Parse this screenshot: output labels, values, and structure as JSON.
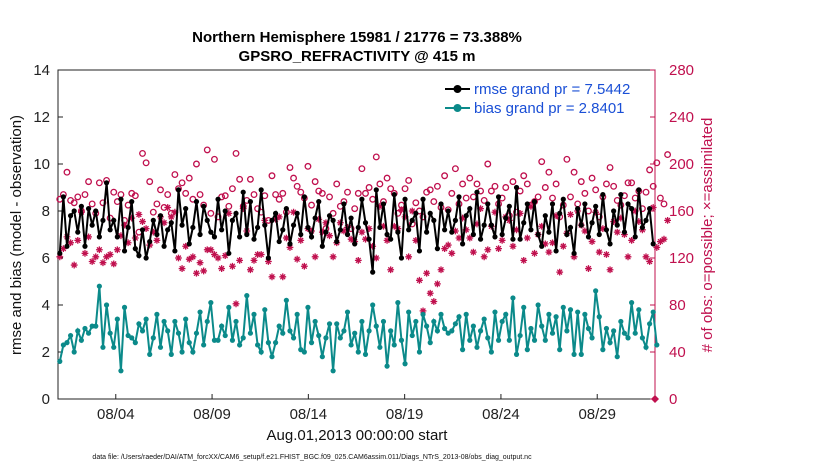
{
  "chart_data": {
    "type": "line",
    "title_line1": "Northern Hemisphere 15981 / 21776 = 73.388%",
    "title_line2": "GPSRO_REFRACTIVITY @ 415 m",
    "xlabel": "Aug.01,2013 00:00:00 start",
    "ylabel_left": "rmse and bias (model - observation)",
    "ylabel_right": "# of obs: o=possible; ×=assimilated",
    "ylim_left": [
      0,
      14
    ],
    "ylim_right": [
      0,
      280
    ],
    "xlim_days": [
      0,
      31
    ],
    "left_ticks": [
      "0",
      "2",
      "4",
      "6",
      "8",
      "10",
      "12",
      "14"
    ],
    "right_ticks": [
      "0",
      "40",
      "80",
      "120",
      "160",
      "200",
      "240",
      "280"
    ],
    "x_ticks": [
      {
        "day": 3,
        "label": "08/04"
      },
      {
        "day": 8,
        "label": "08/09"
      },
      {
        "day": 13,
        "label": "08/14"
      },
      {
        "day": 18,
        "label": "08/19"
      },
      {
        "day": 23,
        "label": "08/24"
      },
      {
        "day": 28,
        "label": "08/29"
      }
    ],
    "legend": [
      {
        "label": "rmse grand pr = 7.5442",
        "color": "#000000"
      },
      {
        "label": "bias grand pr = 2.8401",
        "color": "#0b8a8a"
      }
    ],
    "colors": {
      "rmse": "#000000",
      "bias": "#0b8a8a",
      "obs": "#c0104e"
    },
    "footnote": "data file: /Users/raeder/DAI/ATM_forcXX/CAM6_setup/f.e21.FHIST_BGC.f09_025.CAM6assim.011/Diags_NTrS_2013-08/obs_diag_output.nc",
    "rmse": [
      6.2,
      8.6,
      6.5,
      7.8,
      8.0,
      7.1,
      8.2,
      6.5,
      8.1,
      7.4,
      8.0,
      6.9,
      7.6,
      9.2,
      7.2,
      7.6,
      6.9,
      8.5,
      6.3,
      7.3,
      8.4,
      6.4,
      6.1,
      7.2,
      6.0,
      6.7,
      7.6,
      7.0,
      7.8,
      6.5,
      7.2,
      7.5,
      6.3,
      8.9,
      7.4,
      8.1,
      6.6,
      7.3,
      8.4,
      7.0,
      8.2,
      7.6,
      7.1,
      6.9,
      8.5,
      7.2,
      8.0,
      6.2,
      7.6,
      7.9,
      6.9,
      8.8,
      7.0,
      8.4,
      6.8,
      7.3,
      8.9,
      7.4,
      6.0,
      7.6,
      7.9,
      6.7,
      7.2,
      8.1,
      6.6,
      7.4,
      7.9,
      7.0,
      8.6,
      7.3,
      6.9,
      7.7,
      8.4,
      6.5,
      7.1,
      7.8,
      7.6,
      6.7,
      7.2,
      8.3,
      7.0,
      7.7,
      6.6,
      7.3,
      8.5,
      7.5,
      6.8,
      5.4,
      8.9,
      7.3,
      8.3,
      7.0,
      6.8,
      8.7,
      7.1,
      6.0,
      8.5,
      7.2,
      7.6,
      7.9,
      6.3,
      8.5,
      7.1,
      7.9,
      7.6,
      6.4,
      8.3,
      7.2,
      8.0,
      7.1,
      7.6,
      8.6,
      6.6,
      7.8,
      8.1,
      7.0,
      8.8,
      6.8,
      7.4,
      8.3,
      7.4,
      6.9,
      8.6,
      7.0,
      7.7,
      8.2,
      6.8,
      9.0,
      6.8,
      7.5,
      8.3,
      7.2,
      8.4,
      7.0,
      6.5,
      7.8,
      7.1,
      8.3,
      6.3,
      7.9,
      8.5,
      7.0,
      7.3,
      6.2,
      8.1,
      7.4,
      8.3,
      6.9,
      7.5,
      8.2,
      7.0,
      8.7,
      7.2,
      6.6,
      8.0,
      7.4,
      8.7,
      7.1,
      8.3,
      8.1,
      6.9,
      8.9,
      7.3,
      7.6,
      8.1,
      6.6
    ],
    "bias": [
      1.6,
      2.3,
      2.4,
      2.7,
      2.0,
      2.9,
      2.5,
      3.0,
      2.8,
      3.1,
      3.1,
      4.8,
      2.2,
      4.0,
      2.8,
      2.2,
      3.4,
      1.2,
      3.9,
      2.7,
      2.6,
      2.4,
      3.2,
      2.9,
      3.4,
      1.9,
      2.6,
      3.6,
      2.2,
      3.3,
      2.9,
      1.9,
      3.3,
      2.8,
      2.0,
      3.4,
      2.4,
      2.0,
      2.8,
      3.7,
      2.3,
      3.3,
      4.1,
      2.5,
      2.5,
      3.1,
      2.7,
      3.9,
      2.5,
      3.3,
      2.3,
      2.6,
      4.4,
      2.8,
      3.6,
      2.3,
      2.0,
      3.8,
      2.4,
      1.8,
      2.4,
      3.1,
      2.8,
      4.2,
      2.9,
      2.6,
      3.6,
      2.1,
      2.0,
      3.9,
      2.4,
      3.3,
      2.7,
      1.8,
      2.6,
      3.2,
      1.2,
      3.2,
      2.6,
      2.9,
      3.7,
      2.3,
      2.8,
      2.0,
      3.3,
      1.9,
      2.9,
      4.0,
      3.1,
      2.2,
      3.3,
      1.4,
      2.9,
      2.3,
      4.1,
      2.5,
      1.5,
      3.7,
      2.7,
      3.3,
      2.0,
      3.6,
      3.1,
      2.4,
      3.3,
      2.9,
      3.6,
      3.0,
      2.8,
      2.9,
      3.2,
      3.5,
      2.1,
      3.6,
      2.5,
      3.1,
      2.2,
      2.9,
      3.4,
      2.6,
      2.0,
      3.7,
      2.5,
      3.3,
      3.6,
      2.5,
      4.3,
      1.9,
      2.7,
      3.9,
      2.1,
      3.0,
      2.5,
      4.0,
      3.1,
      2.5,
      3.6,
      2.8,
      3.5,
      2.1,
      3.9,
      2.9,
      3.8,
      1.9,
      3.7,
      1.9,
      3.6,
      3.0,
      2.6,
      4.6,
      3.5,
      2.1,
      3.0,
      2.4,
      2.9,
      1.8,
      3.3,
      2.8,
      2.6,
      4.1,
      2.8,
      3.8,
      2.6,
      2.2,
      3.2,
      3.7,
      2.3
    ],
    "possible": [
      170,
      174,
      193,
      169,
      167,
      172,
      160,
      174,
      185,
      166,
      158,
      184,
      167,
      186,
      154,
      176,
      168,
      174,
      152,
      165,
      175,
      173,
      142,
      209,
      201,
      185,
      159,
      166,
      178,
      163,
      174,
      158,
      191,
      179,
      184,
      175,
      188,
      170,
      200,
      174,
      165,
      212,
      158,
      204,
      155,
      172,
      173,
      164,
      179,
      209,
      187,
      164,
      169,
      187,
      174,
      162,
      159,
      173,
      152,
      190,
      174,
      170,
      175,
      159,
      197,
      188,
      181,
      176,
      171,
      198,
      165,
      185,
      177,
      175,
      145,
      172,
      158,
      183,
      164,
      168,
      176,
      145,
      162,
      175,
      196,
      175,
      180,
      170,
      206,
      183,
      168,
      188,
      179,
      175,
      158,
      165,
      179,
      186,
      149,
      167,
      160,
      155,
      176,
      178,
      168,
      181,
      163,
      190,
      161,
      175,
      196,
      166,
      183,
      171,
      188,
      172,
      183,
      177,
      169,
      200,
      177,
      181,
      166,
      171,
      180,
      156,
      185,
      159,
      177,
      190,
      183,
      165,
      168,
      172,
      202,
      180,
      193,
      171,
      183,
      155,
      165,
      204,
      172,
      193,
      166,
      185,
      175,
      160,
      188,
      178,
      155,
      172,
      183,
      197,
      181,
      169,
      165,
      173,
      184,
      184,
      171,
      177,
      162,
      176,
      195,
      181,
      201,
      171,
      166,
      208
    ],
    "assimilated": [
      121,
      128,
      138,
      133,
      114,
      135,
      159,
      124,
      138,
      117,
      121,
      127,
      116,
      121,
      123,
      115,
      127,
      139,
      148,
      133,
      154,
      137,
      157,
      151,
      145,
      131,
      142,
      135,
      155,
      150,
      163,
      155,
      159,
      120,
      111,
      130,
      119,
      121,
      107,
      116,
      109,
      127,
      127,
      123,
      120,
      111,
      122,
      158,
      113,
      81,
      118,
      162,
      143,
      110,
      118,
      123,
      123,
      152,
      117,
      104,
      153,
      155,
      104,
      137,
      129,
      159,
      119,
      135,
      113,
      145,
      143,
      121,
      153,
      142,
      150,
      139,
      121,
      133,
      150,
      143,
      146,
      136,
      134,
      118,
      142,
      136,
      145,
      130,
      120,
      164,
      147,
      135,
      110,
      147,
      145,
      161,
      155,
      121,
      160,
      135,
      101,
      75,
      107,
      90,
      83,
      98,
      110,
      128,
      131,
      124,
      143,
      137,
      154,
      144,
      137,
      125,
      149,
      162,
      121,
      127,
      147,
      159,
      128,
      135,
      155,
      152,
      130,
      144,
      158,
      118,
      137,
      164,
      124,
      140,
      147,
      132,
      125,
      133,
      156,
      108,
      130,
      141,
      157,
      121,
      160,
      148,
      143,
      111,
      134,
      159,
      125,
      145,
      123,
      110,
      151,
      142,
      154,
      140,
      121,
      135,
      160,
      151,
      144,
      121,
      117,
      163,
      129,
      134,
      136,
      152
    ]
  }
}
